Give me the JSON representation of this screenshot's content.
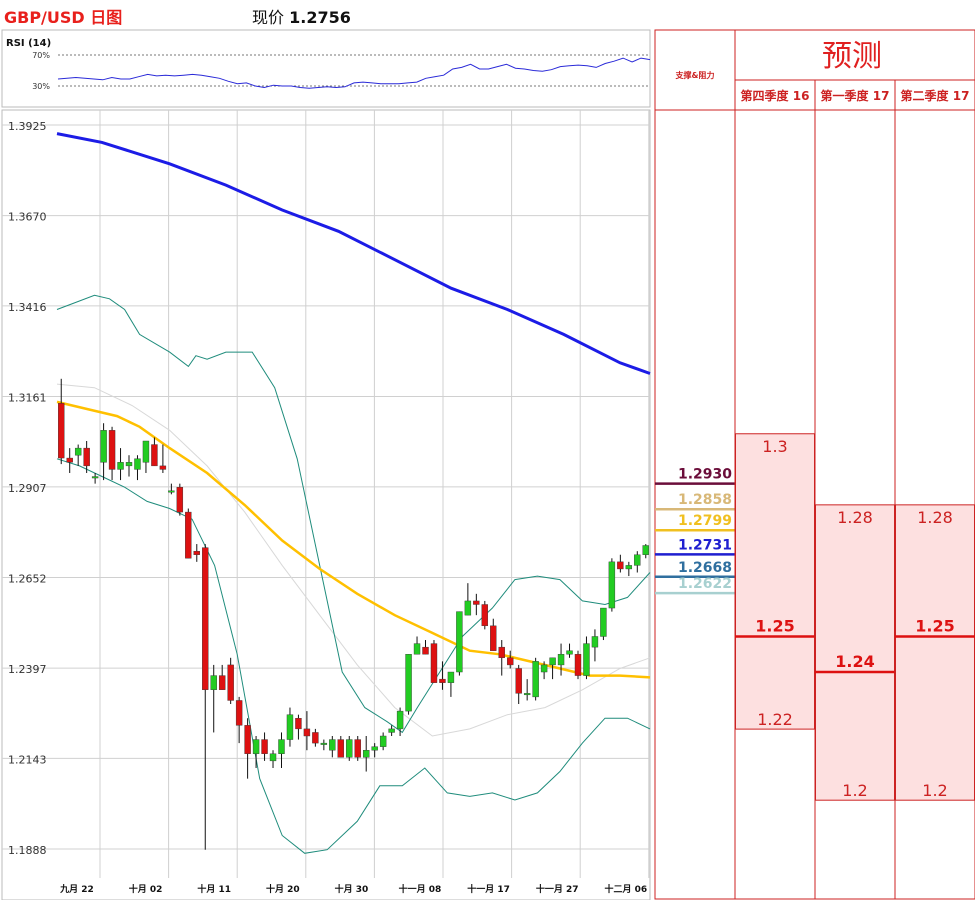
{
  "header": {
    "title": "GBP/USD 日图",
    "price_label": "现价",
    "price_value": "1.2756"
  },
  "rsi": {
    "label": "RSI (14)",
    "level_high": "70%",
    "level_low": "30%",
    "values": [
      39,
      40,
      41,
      40,
      39,
      38,
      41,
      39,
      39,
      42,
      45,
      43,
      44,
      43,
      44,
      45,
      44,
      42,
      40,
      36,
      33,
      34,
      30,
      28,
      31,
      30,
      30,
      28,
      27,
      28,
      29,
      28,
      29,
      34,
      35,
      34,
      33,
      33,
      33,
      34,
      35,
      40,
      42,
      44,
      52,
      54,
      58,
      52,
      52,
      55,
      58,
      53,
      52,
      50,
      49,
      51,
      55,
      56,
      57,
      56,
      54,
      59,
      62,
      66,
      61,
      66,
      64
    ]
  },
  "colors": {
    "title_red": "#e8201c",
    "ma200": "#1c1ce6",
    "ma50": "#ffc000",
    "bollinger": "#1f8c7c",
    "middle_band": "#d8d8d8",
    "up_candle": "#22cc22",
    "down_candle": "#dd1111",
    "forecast_border": "#cc2222",
    "forecast_fill": "#fde0e0"
  },
  "chart_data": {
    "type": "candlestick",
    "pair": "GBP/USD",
    "yticks": [
      "1.3925",
      "1.3670",
      "1.3416",
      "1.3161",
      "1.2907",
      "1.2652",
      "1.2397",
      "1.2143",
      "1.1888"
    ],
    "ylim": [
      1.186,
      1.397
    ],
    "xticks": [
      "九月 22",
      "十月 02",
      "十月 11",
      "十月 20",
      "十月 30",
      "十一月 08",
      "十一月 17",
      "十一月 27",
      "十二月 06"
    ],
    "candles": [
      [
        1.3156,
        1.3225,
        1.2985,
        1.3002
      ],
      [
        1.3002,
        1.303,
        1.296,
        1.299
      ],
      [
        1.301,
        1.304,
        1.298,
        1.303
      ],
      [
        1.303,
        1.305,
        1.296,
        1.298
      ],
      [
        1.295,
        1.296,
        1.293,
        1.295
      ],
      [
        1.299,
        1.31,
        1.294,
        1.308
      ],
      [
        1.308,
        1.309,
        1.294,
        1.297
      ],
      [
        1.297,
        1.303,
        1.294,
        1.299
      ],
      [
        1.298,
        1.301,
        1.295,
        1.299
      ],
      [
        1.297,
        1.301,
        1.294,
        1.3
      ],
      [
        1.299,
        1.305,
        1.296,
        1.305
      ],
      [
        1.304,
        1.306,
        1.298,
        1.298
      ],
      [
        1.298,
        1.304,
        1.296,
        1.297
      ],
      [
        1.291,
        1.293,
        1.29,
        1.291
      ],
      [
        1.292,
        1.293,
        1.284,
        1.285
      ],
      [
        1.285,
        1.286,
        1.272,
        1.272
      ],
      [
        1.274,
        1.276,
        1.271,
        1.273
      ],
      [
        1.275,
        1.276,
        1.19,
        1.235
      ],
      [
        1.235,
        1.242,
        1.223,
        1.239
      ],
      [
        1.239,
        1.242,
        1.235,
        1.235
      ],
      [
        1.242,
        1.244,
        1.231,
        1.232
      ],
      [
        1.232,
        1.233,
        1.22,
        1.225
      ],
      [
        1.225,
        1.227,
        1.21,
        1.217
      ],
      [
        1.217,
        1.222,
        1.213,
        1.221
      ],
      [
        1.221,
        1.223,
        1.215,
        1.217
      ],
      [
        1.215,
        1.218,
        1.213,
        1.217
      ],
      [
        1.217,
        1.223,
        1.213,
        1.221
      ],
      [
        1.221,
        1.23,
        1.219,
        1.228
      ],
      [
        1.227,
        1.228,
        1.221,
        1.224
      ],
      [
        1.224,
        1.229,
        1.218,
        1.222
      ],
      [
        1.223,
        1.224,
        1.219,
        1.22
      ],
      [
        1.22,
        1.221,
        1.218,
        1.22
      ],
      [
        1.218,
        1.222,
        1.216,
        1.221
      ],
      [
        1.221,
        1.222,
        1.216,
        1.216
      ],
      [
        1.216,
        1.222,
        1.215,
        1.221
      ],
      [
        1.221,
        1.222,
        1.215,
        1.216
      ],
      [
        1.216,
        1.222,
        1.212,
        1.218
      ],
      [
        1.218,
        1.22,
        1.216,
        1.219
      ],
      [
        1.219,
        1.223,
        1.218,
        1.222
      ],
      [
        1.223,
        1.225,
        1.222,
        1.224
      ],
      [
        1.224,
        1.23,
        1.222,
        1.229
      ],
      [
        1.229,
        1.245,
        1.228,
        1.245
      ],
      [
        1.245,
        1.25,
        1.245,
        1.248
      ],
      [
        1.247,
        1.249,
        1.245,
        1.245
      ],
      [
        1.248,
        1.249,
        1.237,
        1.237
      ],
      [
        1.238,
        1.243,
        1.235,
        1.237
      ],
      [
        1.237,
        1.24,
        1.233,
        1.24
      ],
      [
        1.24,
        1.257,
        1.239,
        1.257
      ],
      [
        1.256,
        1.265,
        1.256,
        1.26
      ],
      [
        1.26,
        1.262,
        1.256,
        1.259
      ],
      [
        1.259,
        1.26,
        1.252,
        1.253
      ],
      [
        1.253,
        1.255,
        1.246,
        1.246
      ],
      [
        1.247,
        1.249,
        1.239,
        1.244
      ],
      [
        1.244,
        1.246,
        1.241,
        1.242
      ],
      [
        1.241,
        1.242,
        1.231,
        1.234
      ],
      [
        1.234,
        1.238,
        1.232,
        1.234
      ],
      [
        1.233,
        1.244,
        1.232,
        1.243
      ],
      [
        1.24,
        1.243,
        1.238,
        1.242
      ],
      [
        1.242,
        1.244,
        1.238,
        1.244
      ],
      [
        1.242,
        1.248,
        1.239,
        1.245
      ],
      [
        1.245,
        1.248,
        1.244,
        1.246
      ],
      [
        1.245,
        1.246,
        1.238,
        1.239
      ],
      [
        1.239,
        1.25,
        1.238,
        1.248
      ],
      [
        1.247,
        1.252,
        1.243,
        1.25
      ],
      [
        1.25,
        1.258,
        1.249,
        1.258
      ],
      [
        1.258,
        1.272,
        1.257,
        1.271
      ],
      [
        1.271,
        1.273,
        1.268,
        1.269
      ],
      [
        1.269,
        1.271,
        1.267,
        1.27
      ],
      [
        1.27,
        1.274,
        1.268,
        1.273
      ],
      [
        1.273,
        1.276,
        1.272,
        1.2756
      ]
    ],
    "ma200": [
      [
        0,
        1.3915
      ],
      [
        12,
        1.389
      ],
      [
        30,
        1.383
      ],
      [
        45,
        1.377
      ],
      [
        60,
        1.37
      ],
      [
        75,
        1.364
      ],
      [
        90,
        1.356
      ],
      [
        105,
        1.348
      ],
      [
        120,
        1.342
      ],
      [
        135,
        1.335
      ],
      [
        150,
        1.327
      ],
      [
        158,
        1.324
      ]
    ],
    "ma50": [
      [
        0,
        1.316
      ],
      [
        8,
        1.314
      ],
      [
        16,
        1.312
      ],
      [
        22,
        1.309
      ],
      [
        30,
        1.303
      ],
      [
        40,
        1.296
      ],
      [
        50,
        1.287
      ],
      [
        60,
        1.277
      ],
      [
        70,
        1.269
      ],
      [
        80,
        1.262
      ],
      [
        90,
        1.256
      ],
      [
        100,
        1.251
      ],
      [
        110,
        1.246
      ],
      [
        118,
        1.245
      ],
      [
        126,
        1.243
      ],
      [
        134,
        1.241
      ],
      [
        142,
        1.239
      ],
      [
        150,
        1.239
      ],
      [
        158,
        1.2385
      ]
    ],
    "bollinger_upper": [
      [
        0,
        1.342
      ],
      [
        5,
        1.344
      ],
      [
        10,
        1.346
      ],
      [
        14,
        1.345
      ],
      [
        18,
        1.342
      ],
      [
        22,
        1.335
      ],
      [
        30,
        1.33
      ],
      [
        35,
        1.326
      ],
      [
        37,
        1.329
      ],
      [
        40,
        1.328
      ],
      [
        45,
        1.33
      ],
      [
        52,
        1.33
      ],
      [
        58,
        1.32
      ],
      [
        64,
        1.3
      ],
      [
        70,
        1.27
      ],
      [
        76,
        1.24
      ],
      [
        82,
        1.23
      ],
      [
        88,
        1.226
      ],
      [
        92,
        1.223
      ],
      [
        96,
        1.23
      ],
      [
        102,
        1.24
      ],
      [
        108,
        1.25
      ],
      [
        116,
        1.258
      ],
      [
        122,
        1.266
      ],
      [
        128,
        1.267
      ],
      [
        134,
        1.266
      ],
      [
        140,
        1.26
      ],
      [
        146,
        1.259
      ],
      [
        152,
        1.261
      ],
      [
        158,
        1.268
      ]
    ],
    "bollinger_lower": [
      [
        0,
        1.3
      ],
      [
        6,
        1.298
      ],
      [
        12,
        1.295
      ],
      [
        18,
        1.292
      ],
      [
        24,
        1.288
      ],
      [
        30,
        1.286
      ],
      [
        36,
        1.283
      ],
      [
        42,
        1.27
      ],
      [
        48,
        1.245
      ],
      [
        54,
        1.21
      ],
      [
        60,
        1.194
      ],
      [
        66,
        1.189
      ],
      [
        72,
        1.19
      ],
      [
        80,
        1.198
      ],
      [
        86,
        1.208
      ],
      [
        92,
        1.208
      ],
      [
        98,
        1.213
      ],
      [
        104,
        1.206
      ],
      [
        110,
        1.205
      ],
      [
        116,
        1.206
      ],
      [
        122,
        1.204
      ],
      [
        128,
        1.206
      ],
      [
        134,
        1.212
      ],
      [
        140,
        1.22
      ],
      [
        146,
        1.227
      ],
      [
        152,
        1.227
      ],
      [
        158,
        1.224
      ]
    ],
    "bollinger_middle": [
      [
        0,
        1.321
      ],
      [
        10,
        1.32
      ],
      [
        20,
        1.315
      ],
      [
        30,
        1.308
      ],
      [
        40,
        1.298
      ],
      [
        50,
        1.285
      ],
      [
        60,
        1.27
      ],
      [
        70,
        1.256
      ],
      [
        80,
        1.242
      ],
      [
        90,
        1.23
      ],
      [
        100,
        1.222
      ],
      [
        110,
        1.224
      ],
      [
        120,
        1.228
      ],
      [
        130,
        1.23
      ],
      [
        140,
        1.235
      ],
      [
        150,
        1.241
      ],
      [
        158,
        1.244
      ]
    ],
    "support_resistance": [
      {
        "label": "1.2930",
        "value": 1.293,
        "color": "#6b0d3a"
      },
      {
        "label": "1.2858",
        "value": 1.2858,
        "color": "#d8b878"
      },
      {
        "label": "1.2799",
        "value": 1.2799,
        "color": "#f0c020"
      },
      {
        "label": "1.2731",
        "value": 1.2731,
        "color": "#1f1fd0"
      },
      {
        "label": "1.2668",
        "value": 1.2668,
        "color": "#2f6f9f"
      },
      {
        "label": "1.2622",
        "value": 1.2622,
        "color": "#a8d0d0"
      }
    ]
  },
  "side_panel": {
    "sr_header": "支撑&阻力",
    "forecast_title": "预测",
    "columns": [
      {
        "label": "第四季度 16",
        "high": "1.3",
        "mid": "1.25",
        "low": "1.22",
        "high_v": 1.3,
        "mid_v": 1.25,
        "low_v": 1.22
      },
      {
        "label": "第一季度 17",
        "high": "1.28",
        "mid": "1.24",
        "low": "1.2",
        "high_v": 1.28,
        "mid_v": 1.24,
        "low_v": 1.2
      },
      {
        "label": "第二季度 17",
        "high": "1.28",
        "mid": "1.25",
        "low": "1.2",
        "high_v": 1.28,
        "mid_v": 1.25,
        "low_v": 1.2
      }
    ]
  }
}
